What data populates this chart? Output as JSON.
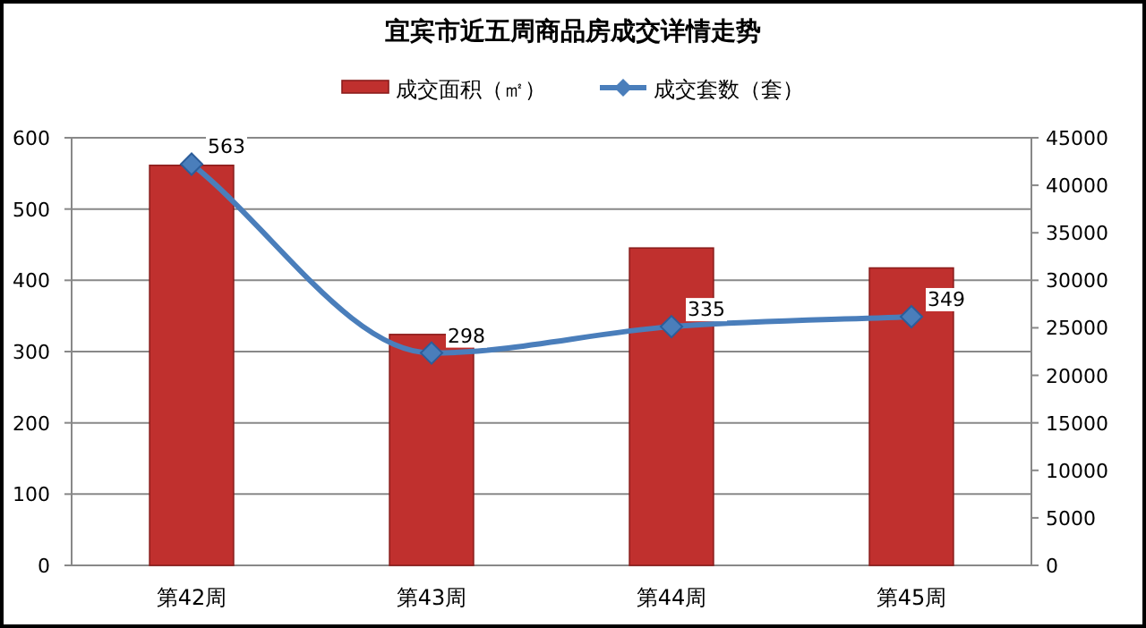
{
  "chart_data": {
    "type": "bar",
    "title": "宜宾市近五周商品房成交详情走势",
    "categories": [
      "第42周",
      "第43周",
      "第44周",
      "第45周"
    ],
    "series": [
      {
        "name": "成交面积（㎡）",
        "axis": "y2",
        "color": "#c0302e",
        "values": [
          42100,
          24300,
          33400,
          31300
        ]
      },
      {
        "name": "成交套数（套）",
        "type": "line",
        "color": "#4a7ebb",
        "marker": "diamond",
        "values": [
          563,
          298,
          335,
          349
        ],
        "value_labels": [
          "563",
          "298",
          "335",
          "349"
        ]
      }
    ],
    "ylim": [
      0,
      600
    ],
    "yticks": [
      0,
      100,
      200,
      300,
      400,
      500,
      600
    ],
    "y2lim": [
      0,
      45000
    ],
    "y2ticks": [
      0,
      5000,
      10000,
      15000,
      20000,
      25000,
      30000,
      35000,
      40000,
      45000
    ],
    "grid": "y",
    "legend": "top"
  }
}
